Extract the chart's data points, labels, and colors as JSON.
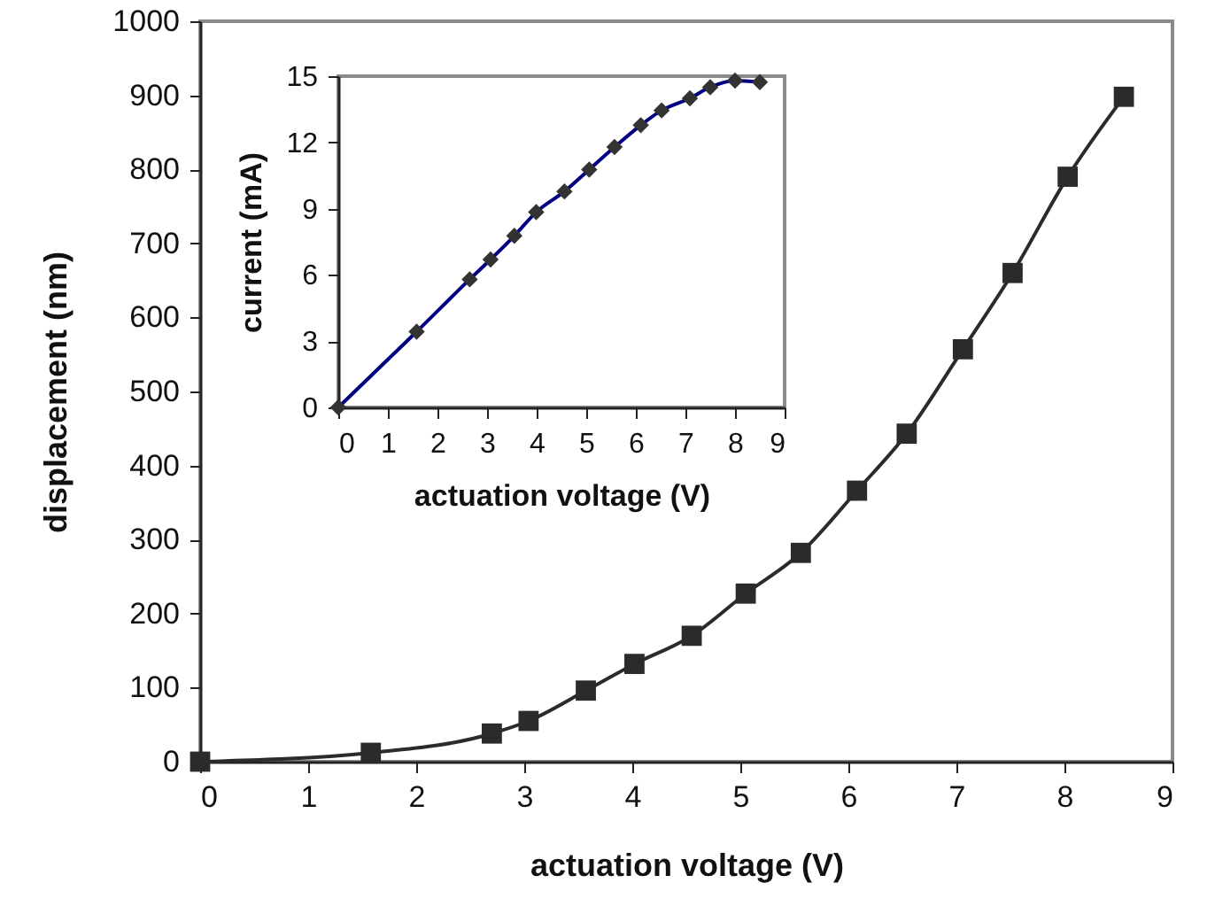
{
  "chart_data": [
    {
      "type": "line",
      "xlabel": "actuation voltage (V)",
      "ylabel": "displacement (nm)",
      "marker": "square",
      "line_style": "solid",
      "x": [
        0,
        1.58,
        2.7,
        3.04,
        3.57,
        4.02,
        4.55,
        5.05,
        5.56,
        6.08,
        6.54,
        7.06,
        7.52,
        8.03,
        8.55
      ],
      "series": [
        {
          "color": "#2b2b2b",
          "values": [
            0,
            12,
            38,
            55,
            96,
            132,
            170,
            227,
            282,
            366,
            443,
            557,
            660,
            790,
            898
          ]
        }
      ],
      "xlim": [
        0,
        9
      ],
      "xticks": [
        0,
        1,
        2,
        3,
        4,
        5,
        6,
        7,
        8,
        9
      ],
      "ylim": [
        0,
        1000
      ],
      "yticks": [
        0,
        100,
        200,
        300,
        400,
        500,
        600,
        700,
        800,
        900,
        1000
      ]
    },
    {
      "type": "line",
      "xlabel": "actuation voltage (V)",
      "ylabel": "current (mA)",
      "marker": "diamond",
      "line_style": "solid",
      "x": [
        0,
        1.58,
        2.65,
        3.07,
        3.55,
        3.99,
        4.56,
        5.06,
        5.57,
        6.1,
        6.52,
        7.09,
        7.5,
        8.0,
        8.5
      ],
      "series": [
        {
          "color": "#000080",
          "values": [
            0,
            3.43,
            5.8,
            6.7,
            7.77,
            8.84,
            9.78,
            10.77,
            11.79,
            12.78,
            13.45,
            14.0,
            14.5,
            14.8,
            14.73
          ]
        }
      ],
      "xlim": [
        0,
        9
      ],
      "xticks": [
        0,
        1,
        2,
        3,
        4,
        5,
        6,
        7,
        8,
        9
      ],
      "ylim": [
        0,
        15
      ],
      "yticks": [
        0,
        3,
        6,
        9,
        12,
        15
      ]
    }
  ]
}
